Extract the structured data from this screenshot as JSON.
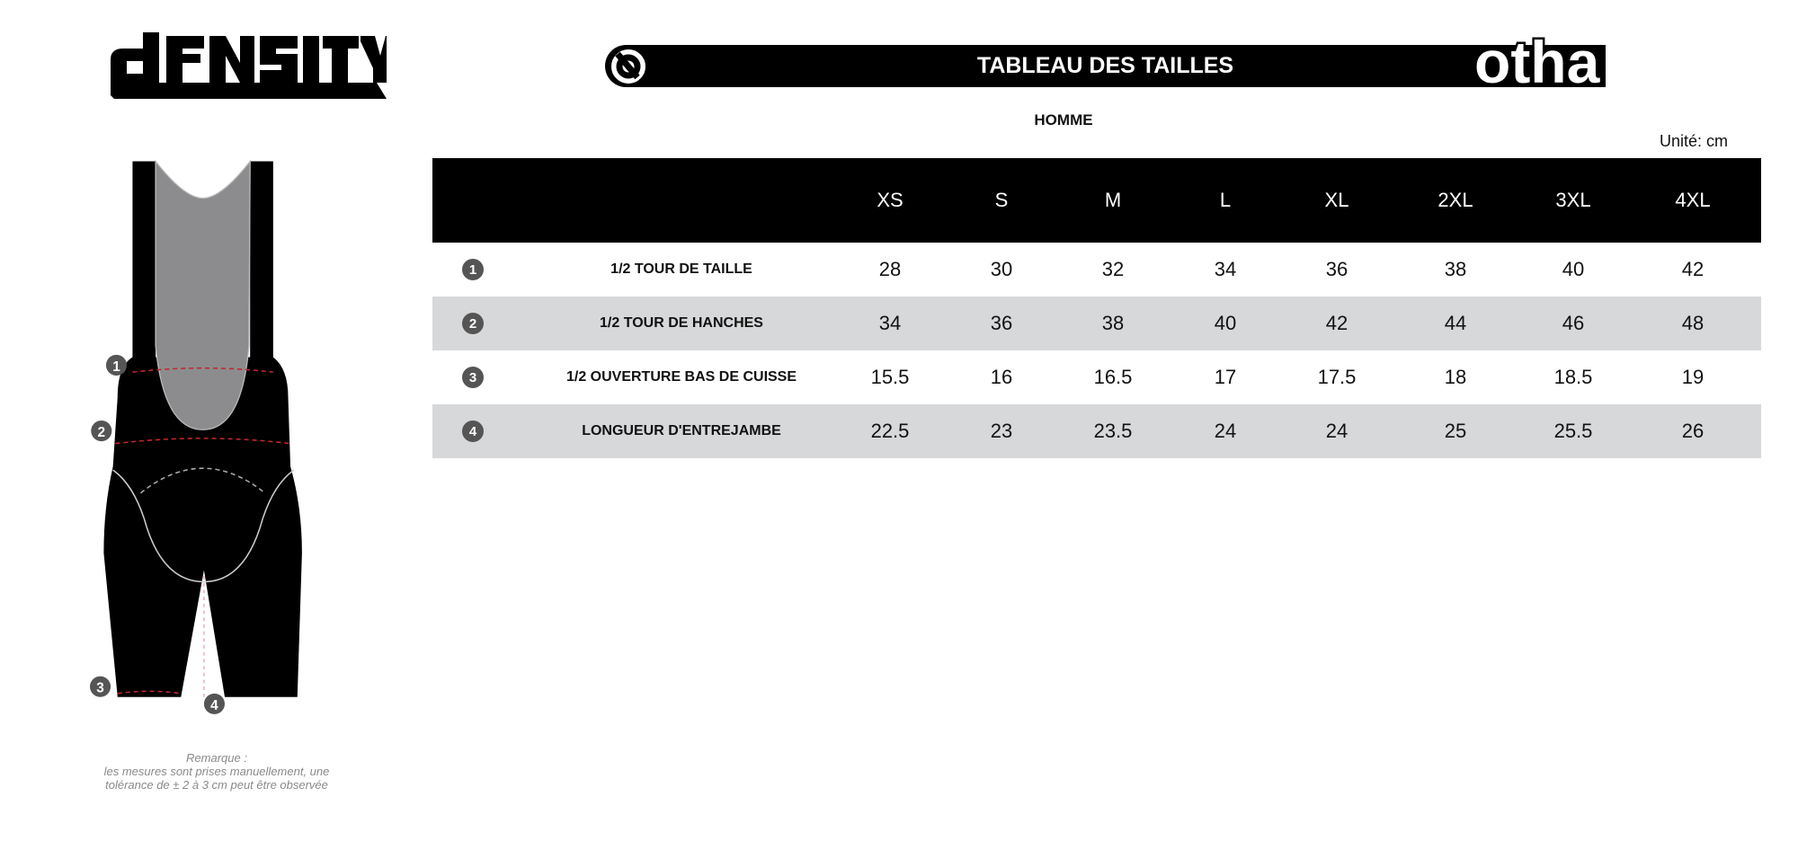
{
  "brand": {
    "left_logo": "DENSITY",
    "right_logo": "otha"
  },
  "header": {
    "title": "TABLEAU DES TAILLES",
    "subtitle": "HOMME",
    "unit": "Unité: cm"
  },
  "table": {
    "sizes": [
      "XS",
      "S",
      "M",
      "L",
      "XL",
      "2XL",
      "3XL",
      "4XL"
    ],
    "rows": [
      {
        "num": "1",
        "label": "1/2 TOUR DE TAILLE",
        "values": [
          "28",
          "30",
          "32",
          "34",
          "36",
          "38",
          "40",
          "42"
        ]
      },
      {
        "num": "2",
        "label": "1/2 TOUR DE HANCHES",
        "values": [
          "34",
          "36",
          "38",
          "40",
          "42",
          "44",
          "46",
          "48"
        ]
      },
      {
        "num": "3",
        "label": "1/2 OUVERTURE BAS DE CUISSE",
        "values": [
          "15.5",
          "16",
          "16.5",
          "17",
          "17.5",
          "18",
          "18.5",
          "19"
        ]
      },
      {
        "num": "4",
        "label": "LONGUEUR D'ENTREJAMBE",
        "values": [
          "22.5",
          "23",
          "23.5",
          "24",
          "24",
          "25",
          "25.5",
          "26"
        ]
      }
    ]
  },
  "figure": {
    "markers": [
      "1",
      "2",
      "3",
      "4"
    ]
  },
  "remark": {
    "title": "Remarque :",
    "line1": "les mesures sont prises manuellement, une",
    "line2": "tolérance de ± 2 à 3 cm peut être observée"
  },
  "colors": {
    "header_bg": "#000000",
    "alt_row": "#d7d8da",
    "marker": "#555555",
    "measure_line": "#c0272d"
  }
}
